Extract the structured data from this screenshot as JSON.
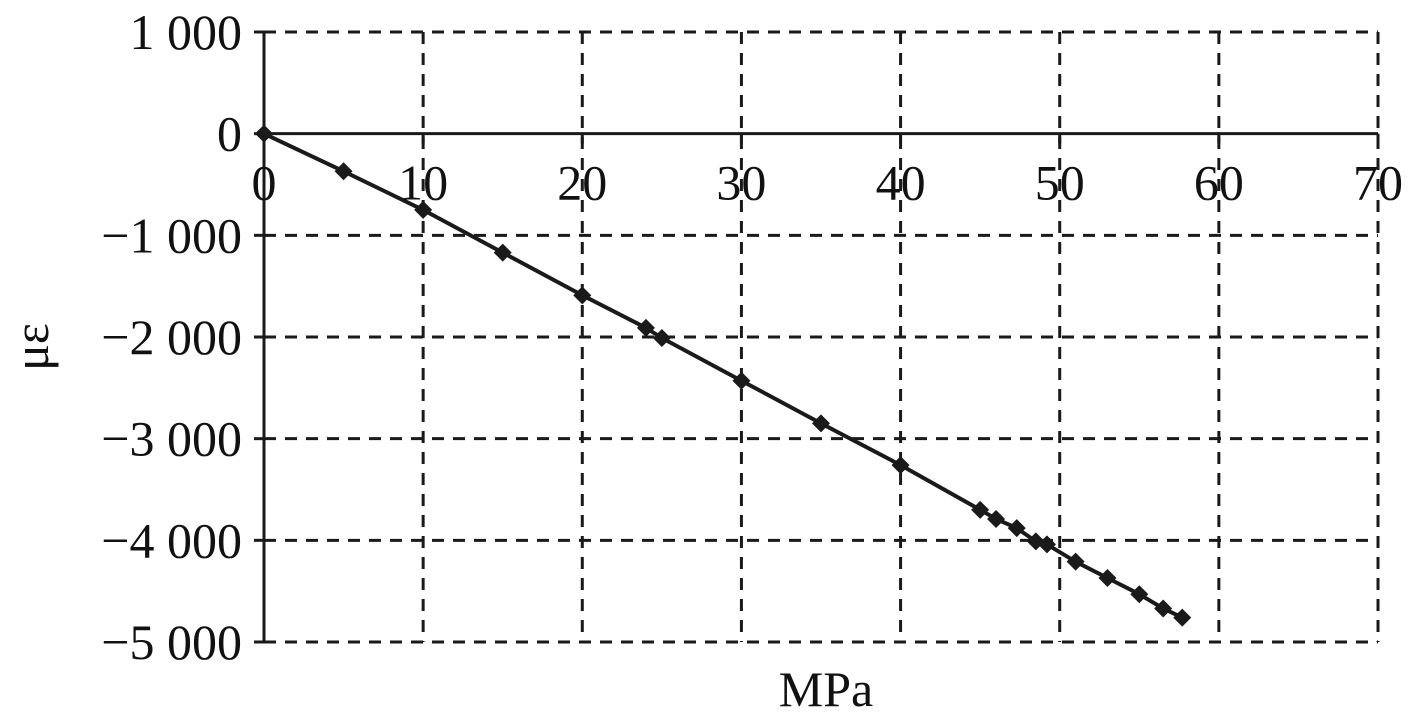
{
  "chart_data": {
    "type": "line",
    "title": "",
    "xlabel": "MPa",
    "ylabel": "με",
    "xlim": [
      0,
      70
    ],
    "ylim": [
      -5000,
      1000
    ],
    "grid": true,
    "grid_style": "dashed",
    "xticks": [
      0,
      10,
      20,
      30,
      40,
      50,
      60,
      70
    ],
    "yticks": [
      1000,
      0,
      -1000,
      -2000,
      -3000,
      -4000,
      -5000
    ],
    "xtick_labels": [
      "0",
      "10",
      "20",
      "30",
      "40",
      "50",
      "60",
      "70"
    ],
    "ytick_labels": [
      "1 000",
      "0",
      "−1 000",
      "−2 000",
      "−3 000",
      "−4 000",
      "−5 000"
    ],
    "series": [
      {
        "marker": "diamond",
        "color": "#1a1a1a",
        "x": [
          0,
          5,
          10,
          15,
          20,
          24,
          25,
          30,
          35,
          40,
          45,
          46,
          47.3,
          48.5,
          49.2,
          51,
          53,
          55,
          56.5,
          57.7
        ],
        "y": [
          0,
          -370,
          -750,
          -1170,
          -1590,
          -1910,
          -2010,
          -2430,
          -2850,
          -3260,
          -3700,
          -3790,
          -3880,
          -4010,
          -4040,
          -4210,
          -4370,
          -4530,
          -4670,
          -4760
        ]
      }
    ]
  }
}
